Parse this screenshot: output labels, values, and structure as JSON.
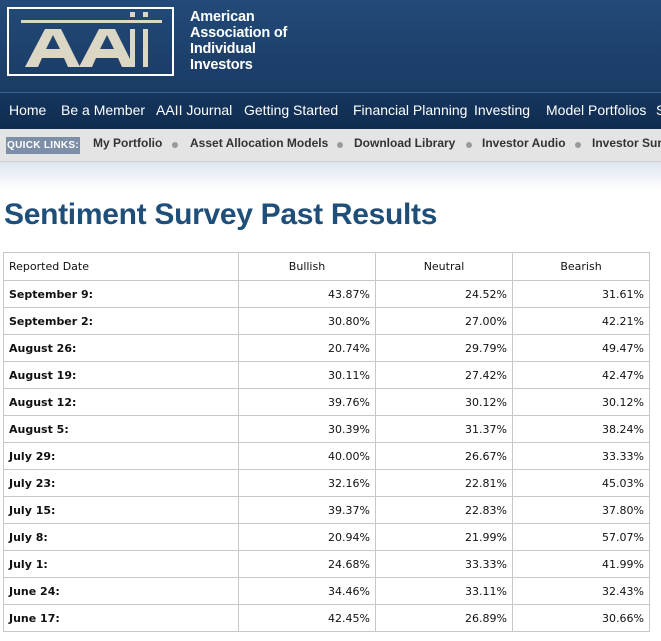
{
  "header": {
    "logo_lines": [
      "American",
      "Association of",
      "Individual",
      "Investors"
    ]
  },
  "nav": {
    "items": [
      "Home",
      "Be a Member",
      "AAII Journal",
      "Getting Started",
      "Financial Planning",
      "Investing",
      "Model Portfolios",
      "S"
    ]
  },
  "quick_links": {
    "label": "QUICK LINKS:",
    "items": [
      "My Portfolio",
      "Asset Allocation Models",
      "Download Library",
      "Investor Audio",
      "Investor Sur"
    ]
  },
  "page": {
    "title": "Sentiment Survey Past Results"
  },
  "table": {
    "headers": [
      "Reported Date",
      "Bullish",
      "Neutral",
      "Bearish"
    ],
    "rows": [
      [
        "September 9:",
        "43.87%",
        "24.52%",
        "31.61%"
      ],
      [
        "September 2:",
        "30.80%",
        "27.00%",
        "42.21%"
      ],
      [
        "August 26:",
        "20.74%",
        "29.79%",
        "49.47%"
      ],
      [
        "August 19:",
        "30.11%",
        "27.42%",
        "42.47%"
      ],
      [
        "August 12:",
        "39.76%",
        "30.12%",
        "30.12%"
      ],
      [
        "August 5:",
        "30.39%",
        "31.37%",
        "38.24%"
      ],
      [
        "July 29:",
        "40.00%",
        "26.67%",
        "33.33%"
      ],
      [
        "July 23:",
        "32.16%",
        "22.81%",
        "45.03%"
      ],
      [
        "July 15:",
        "39.37%",
        "22.83%",
        "37.80%"
      ],
      [
        "July 8:",
        "20.94%",
        "21.99%",
        "57.07%"
      ],
      [
        "July 1:",
        "24.68%",
        "33.33%",
        "41.99%"
      ],
      [
        "June 24:",
        "34.46%",
        "33.11%",
        "32.43%"
      ],
      [
        "June 17:",
        "42.45%",
        "26.89%",
        "30.66%"
      ]
    ]
  }
}
